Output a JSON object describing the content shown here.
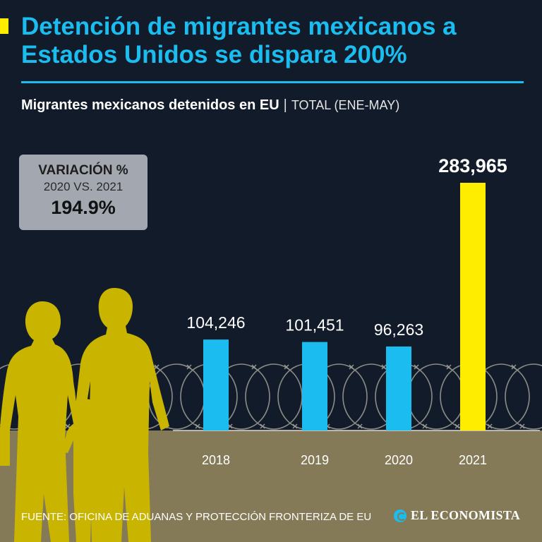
{
  "headline": "Detención de migrantes mexicanos a Estados Unidos se dispara 200%",
  "subtitle": {
    "main": "Migrantes mexicanos detenidos en EU",
    "separator": "|",
    "qualifier": "TOTAL (ENE-MAY)"
  },
  "variation": {
    "label": "VARIACIÓN %",
    "period": "2020 VS. 2021",
    "value": "194.9%"
  },
  "chart_data": {
    "type": "bar",
    "title": "Migrantes mexicanos detenidos en EU",
    "subtitle": "TOTAL (ENE-MAY)",
    "categories": [
      "2018",
      "2019",
      "2020",
      "2021"
    ],
    "values": [
      104246,
      101451,
      96263,
      283965
    ],
    "data_labels": [
      "104,246",
      "101,451",
      "96,263",
      "283,965"
    ],
    "highlight_index": 3,
    "ylim": [
      0,
      283965
    ],
    "xlabel": "",
    "ylabel": "",
    "grid": false
  },
  "colors": {
    "accent_blue": "#1bbdf0",
    "accent_yellow": "#ffed00",
    "background": "#121b29",
    "ground": "#857a57",
    "figures": "#c9b400",
    "var_box": "#a3a8b0"
  },
  "source": "FUENTE: OFICINA DE ADUANAS Y PROTECCIÓN FRONTERIZA DE EU",
  "brand": "EL ECONOMISTA"
}
